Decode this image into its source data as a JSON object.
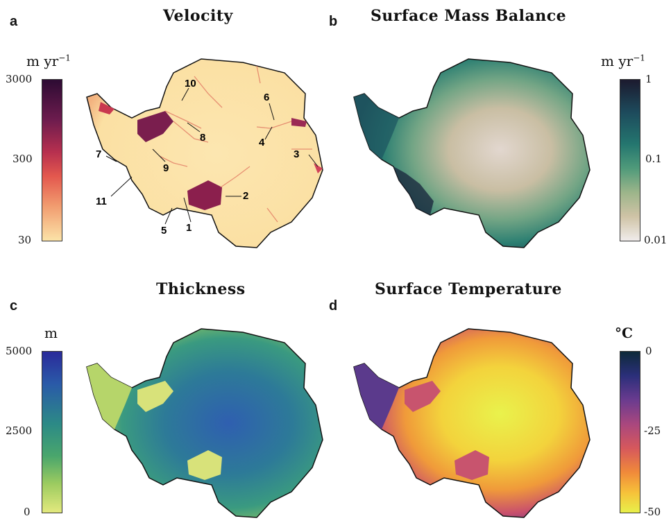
{
  "panels": {
    "a": {
      "letter": "a",
      "title": "Velocity",
      "unit_main": "m  yr",
      "unit_exp": "−1",
      "ticks": [
        "3000",
        "300",
        "30"
      ],
      "glacier_labels": [
        "1",
        "2",
        "3",
        "4",
        "5",
        "6",
        "7",
        "8",
        "9",
        "10",
        "11"
      ]
    },
    "b": {
      "letter": "b",
      "title": "Surface Mass Balance",
      "unit_main": "m  yr",
      "unit_exp": "−1",
      "ticks": [
        "1",
        "0.1",
        "0.01"
      ]
    },
    "c": {
      "letter": "c",
      "title": "Thickness",
      "unit_main": "m",
      "ticks": [
        "5000",
        "2500",
        "0"
      ]
    },
    "d": {
      "letter": "d",
      "title": "Surface Temperature",
      "unit_main": "°C",
      "ticks": [
        "0",
        "-25",
        "-50"
      ]
    }
  },
  "colors": {
    "velocity_low": "#fbe3a8",
    "velocity_mid": "#d9475a",
    "velocity_high": "#3b0f3f",
    "smb_low": "#f0eceb",
    "smb_mid": "#2e8a78",
    "smb_high": "#1c1a2e",
    "thick_low": "#e3e97e",
    "thick_mid": "#2c8a86",
    "thick_high": "#2a2a9a",
    "temp_high": "#0d2a3a",
    "temp_mid": "#c94f70",
    "temp_low": "#e8f04a"
  }
}
